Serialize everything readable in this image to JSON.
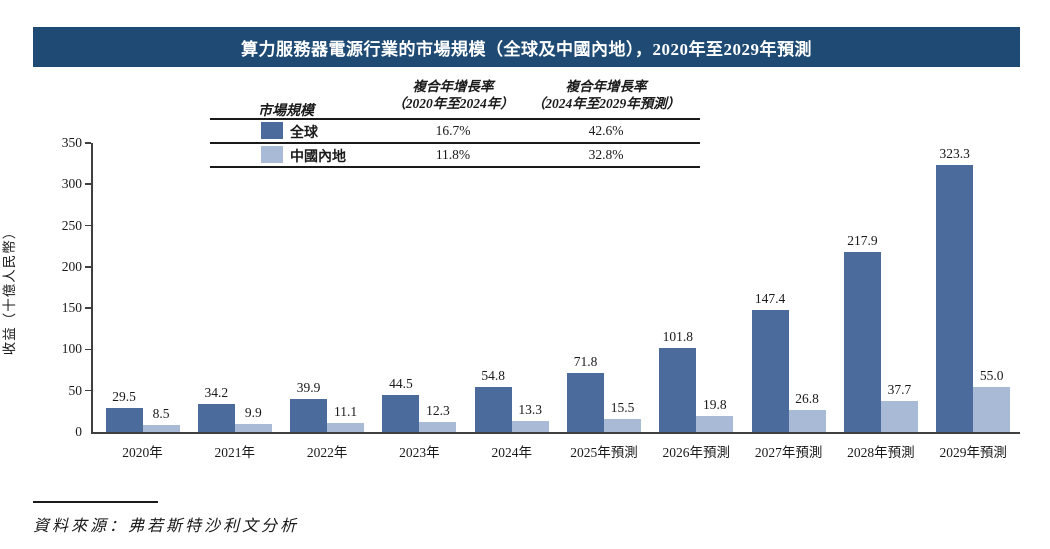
{
  "title": "算力服務器電源行業的市場規模（全球及中國內地），2020年至2029年預測",
  "legend_table": {
    "size_header": "市場規模",
    "columns": [
      {
        "line1": "複合年增長率",
        "line2": "（2020年至2024年）"
      },
      {
        "line1": "複合年增長率",
        "line2": "（2024年至2029年預測）"
      }
    ],
    "rows": [
      {
        "label": "全球",
        "values": [
          "16.7%",
          "42.6%"
        ],
        "color": "#4a6b9b"
      },
      {
        "label": "中國內地",
        "values": [
          "11.8%",
          "32.8%"
        ],
        "color": "#a8bad6"
      }
    ]
  },
  "chart_data": {
    "type": "bar",
    "title": "算力服務器電源行業的市場規模（全球及中國內地），2020年至2029年預測",
    "xlabel": "",
    "ylabel": "收益（十億人民幣）",
    "ylim": [
      0,
      350
    ],
    "ytick_step": 50,
    "grid": false,
    "legend_position": "top-table",
    "categories": [
      "2020年",
      "2021年",
      "2022年",
      "2023年",
      "2024年",
      "2025年預測",
      "2026年預測",
      "2027年預測",
      "2028年預測",
      "2029年預測"
    ],
    "series": [
      {
        "name": "全球",
        "color": "#4a6b9b",
        "values": [
          29.5,
          34.2,
          39.9,
          44.5,
          54.8,
          71.8,
          101.8,
          147.4,
          217.9,
          323.3
        ]
      },
      {
        "name": "中國內地",
        "color": "#a8bad6",
        "values": [
          8.5,
          9.9,
          11.1,
          12.3,
          13.3,
          15.5,
          19.8,
          26.8,
          37.7,
          55.0
        ]
      }
    ]
  },
  "source": "資料來源：弗若斯特沙利文分析",
  "colors": {
    "title_bar_bg": "#1e4a73",
    "title_text": "#ffffff",
    "global_bar": "#4a6b9b",
    "china_bar": "#a8bad6",
    "axis": "#404040",
    "text": "#1a1a1a"
  }
}
